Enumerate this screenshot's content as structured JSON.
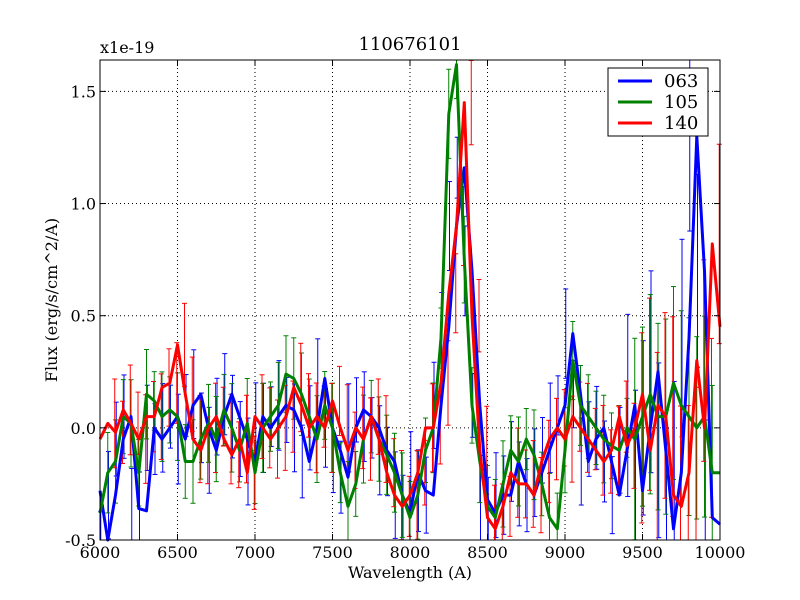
{
  "chart_data": {
    "type": "line",
    "title": "110676101",
    "xlabel": "Wavelength (A)",
    "ylabel": "Flux (erg/s/cm^2/A)",
    "y_offset_label": "x1e-19",
    "xlim": [
      6000,
      10000
    ],
    "ylim": [
      -0.5,
      1.64
    ],
    "x_ticks": [
      6000,
      6500,
      7000,
      7500,
      8000,
      8500,
      9000,
      9500,
      10000
    ],
    "x_tick_labels": [
      "6000",
      "6500",
      "7000",
      "7500",
      "8000",
      "8500",
      "9000",
      "9500",
      "10000"
    ],
    "y_ticks": [
      -0.5,
      0.0,
      0.5,
      1.0,
      1.5
    ],
    "y_tick_labels": [
      "-0.5",
      "0.0",
      "0.5",
      "1.0",
      "1.5"
    ],
    "grid": true,
    "legend_position": "top-right",
    "legend": [
      "063",
      "105",
      "140"
    ],
    "series": [
      {
        "name": "063",
        "color": "#0000ff",
        "x": [
          6000,
          6050,
          6100,
          6150,
          6200,
          6250,
          6300,
          6350,
          6400,
          6450,
          6500,
          6550,
          6600,
          6650,
          6700,
          6750,
          6800,
          6850,
          6900,
          6950,
          7000,
          7050,
          7100,
          7150,
          7200,
          7250,
          7300,
          7350,
          7400,
          7450,
          7500,
          7550,
          7600,
          7650,
          7700,
          7750,
          7800,
          7850,
          7900,
          7950,
          8000,
          8050,
          8100,
          8150,
          8200,
          8250,
          8300,
          8350,
          8400,
          8450,
          8500,
          8550,
          8600,
          8650,
          8700,
          8750,
          8800,
          8850,
          8900,
          8950,
          9000,
          9050,
          9100,
          9150,
          9200,
          9250,
          9300,
          9350,
          9400,
          9450,
          9500,
          9550,
          9600,
          9650,
          9700,
          9750,
          9800,
          9850,
          9900,
          9950,
          10000
        ],
        "y": [
          -0.28,
          -0.52,
          -0.3,
          -0.05,
          0.05,
          -0.36,
          -0.37,
          0.0,
          -0.05,
          0.0,
          0.05,
          -0.05,
          0.1,
          0.15,
          0.0,
          -0.1,
          0.05,
          0.15,
          0.05,
          -0.05,
          -0.15,
          0.05,
          0.0,
          0.05,
          0.1,
          0.08,
          0.0,
          -0.15,
          0.0,
          0.22,
          0.0,
          -0.1,
          -0.22,
          0.0,
          0.08,
          0.05,
          0.0,
          -0.1,
          -0.15,
          -0.3,
          -0.38,
          -0.2,
          -0.28,
          -0.3,
          0.1,
          0.45,
          0.9,
          1.16,
          0.7,
          0.1,
          -0.32,
          -0.38,
          -0.3,
          -0.3,
          -0.15,
          -0.25,
          -0.3,
          -0.2,
          -0.1,
          0.0,
          0.1,
          0.42,
          0.15,
          -0.15,
          -0.05,
          0.0,
          -0.15,
          -0.3,
          -0.1,
          0.1,
          -0.28,
          0.0,
          0.25,
          -0.1,
          -0.45,
          -0.2,
          0.4,
          1.3,
          0.7,
          -0.4,
          -0.43
        ]
      },
      {
        "name": "105",
        "color": "#008000",
        "x": [
          6000,
          6050,
          6100,
          6150,
          6200,
          6250,
          6300,
          6350,
          6400,
          6450,
          6500,
          6550,
          6600,
          6650,
          6700,
          6750,
          6800,
          6850,
          6900,
          6950,
          7000,
          7050,
          7100,
          7150,
          7200,
          7250,
          7300,
          7350,
          7400,
          7450,
          7500,
          7550,
          7600,
          7650,
          7700,
          7750,
          7800,
          7850,
          7900,
          7950,
          8000,
          8050,
          8100,
          8150,
          8200,
          8250,
          8300,
          8350,
          8400,
          8450,
          8500,
          8550,
          8600,
          8650,
          8700,
          8750,
          8800,
          8850,
          8900,
          8950,
          9000,
          9050,
          9100,
          9150,
          9200,
          9250,
          9300,
          9350,
          9400,
          9450,
          9500,
          9550,
          9600,
          9650,
          9700,
          9750,
          9800,
          9850,
          9900,
          9950,
          10000
        ],
        "y": [
          -0.38,
          -0.2,
          -0.15,
          0.05,
          0.02,
          -0.2,
          0.15,
          0.12,
          0.05,
          0.08,
          0.05,
          -0.15,
          -0.15,
          -0.05,
          0.02,
          -0.05,
          0.08,
          0.0,
          -0.1,
          0.02,
          -0.2,
          0.0,
          0.05,
          0.1,
          0.24,
          0.22,
          0.15,
          0.05,
          -0.05,
          0.1,
          0.0,
          -0.2,
          -0.35,
          -0.25,
          -0.05,
          0.05,
          -0.05,
          -0.12,
          -0.2,
          -0.3,
          -0.4,
          -0.3,
          -0.1,
          0.0,
          0.4,
          1.4,
          1.62,
          0.75,
          0.1,
          -0.15,
          -0.35,
          -0.4,
          -0.25,
          -0.1,
          -0.15,
          -0.05,
          -0.12,
          -0.25,
          -0.4,
          -0.45,
          -0.1,
          0.3,
          0.1,
          0.05,
          0.0,
          -0.05,
          -0.08,
          -0.1,
          0.0,
          -0.05,
          0.05,
          0.15,
          0.05,
          0.05,
          0.2,
          0.1,
          0.05,
          0.0,
          0.05,
          -0.2,
          -0.2
        ]
      },
      {
        "name": "140",
        "color": "#ff0000",
        "x": [
          6000,
          6050,
          6100,
          6150,
          6200,
          6250,
          6300,
          6350,
          6400,
          6450,
          6500,
          6550,
          6600,
          6650,
          6700,
          6750,
          6800,
          6850,
          6900,
          6950,
          7000,
          7050,
          7100,
          7150,
          7200,
          7250,
          7300,
          7350,
          7400,
          7450,
          7500,
          7550,
          7600,
          7650,
          7700,
          7750,
          7800,
          7850,
          7900,
          7950,
          8000,
          8050,
          8100,
          8150,
          8200,
          8250,
          8300,
          8350,
          8400,
          8450,
          8500,
          8550,
          8600,
          8650,
          8700,
          8750,
          8800,
          8850,
          8900,
          8950,
          9000,
          9050,
          9100,
          9150,
          9200,
          9250,
          9300,
          9350,
          9400,
          9450,
          9500,
          9550,
          9600,
          9650,
          9700,
          9750,
          9800,
          9850,
          9900,
          9950,
          10000
        ],
        "y": [
          -0.05,
          0.02,
          -0.02,
          0.08,
          0.02,
          -0.05,
          0.05,
          0.05,
          0.18,
          0.2,
          0.37,
          0.15,
          -0.05,
          -0.1,
          0.0,
          0.05,
          -0.05,
          -0.12,
          -0.05,
          -0.2,
          0.05,
          0.0,
          -0.05,
          0.0,
          0.05,
          0.18,
          0.1,
          0.0,
          0.05,
          0.0,
          0.12,
          0.0,
          -0.1,
          0.0,
          -0.05,
          0.05,
          -0.05,
          -0.2,
          -0.3,
          -0.35,
          -0.3,
          -0.2,
          0.0,
          0.0,
          0.2,
          0.6,
          0.9,
          1.45,
          0.5,
          -0.1,
          -0.4,
          -0.45,
          -0.35,
          -0.2,
          -0.25,
          -0.25,
          -0.3,
          -0.15,
          -0.05,
          0.0,
          -0.05,
          0.05,
          0.0,
          -0.05,
          -0.1,
          -0.15,
          -0.1,
          0.05,
          -0.08,
          0.0,
          0.15,
          -0.1,
          0.1,
          0.05,
          -0.3,
          -0.35,
          -0.2,
          0.3,
          0.0,
          0.82,
          0.45
        ]
      }
    ]
  }
}
